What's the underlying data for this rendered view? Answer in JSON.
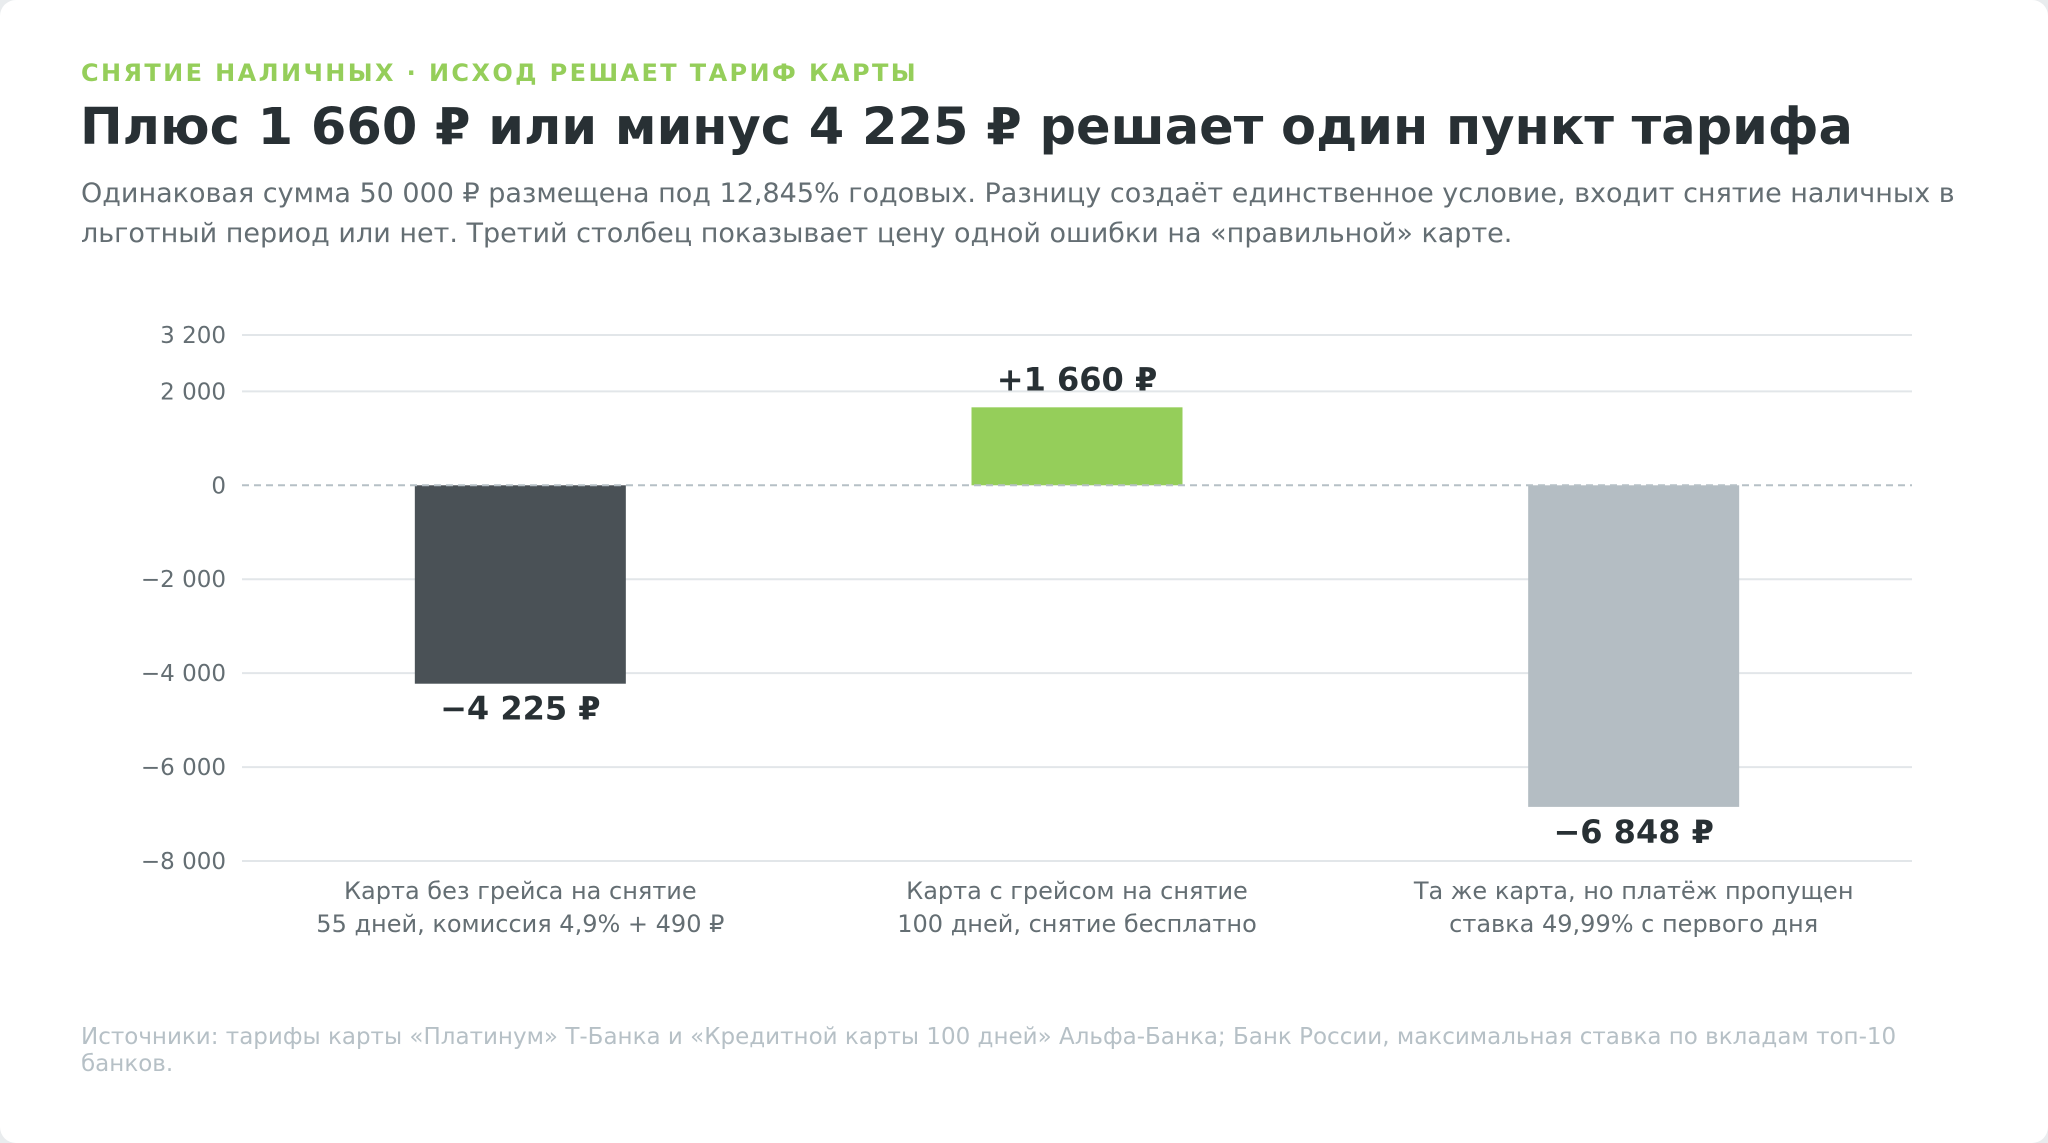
{
  "header": {
    "kicker": "СНЯТИЕ НАЛИЧНЫХ · ИСХОД РЕШАЕТ ТАРИФ КАРТЫ",
    "title": "Плюс 1 660 ₽ или минус 4 225 ₽ решает один пункт тарифа",
    "subtitle": "Одинаковая сумма 50 000 ₽ размещена под 12,845% годовых. Разницу создаёт единственное условие, входит снятие наличных в льготный период или нет. Третий столбец показывает цену одной ошибки на «правильной» карте."
  },
  "footer": {
    "source": "Источники: тарифы карты «Платинум» Т-Банка и «Кредитной карты 100 дней» Альфа-Банка; Банк России, максимальная ставка по вкладам топ-10 банков."
  },
  "chart_data": {
    "type": "bar",
    "categories": [
      [
        "Карта без грейса на снятие",
        "55 дней, комиссия 4,9% + 490 ₽"
      ],
      [
        "Карта с грейсом на снятие",
        "100 дней, снятие бесплатно"
      ],
      [
        "Та же карта, но платёж пропущен",
        "ставка 49,99% с первого дня"
      ]
    ],
    "values": [
      -4225,
      1660,
      -6848
    ],
    "value_labels": [
      "−4 225 ₽",
      "+1 660 ₽",
      "−6 848 ₽"
    ],
    "colors": [
      "#4a5156",
      "#95ce5a",
      "#b4bdc3"
    ],
    "ylim": [
      -8000,
      3200
    ],
    "yticks": [
      3200,
      2000,
      0,
      -2000,
      -4000,
      -6000,
      -8000
    ],
    "ytick_labels": [
      "3 200",
      "2 000",
      "0",
      "−2 000",
      "−4 000",
      "−6 000",
      "−8 000"
    ],
    "zero_line": "dashed",
    "grid": true,
    "legend": "none"
  }
}
